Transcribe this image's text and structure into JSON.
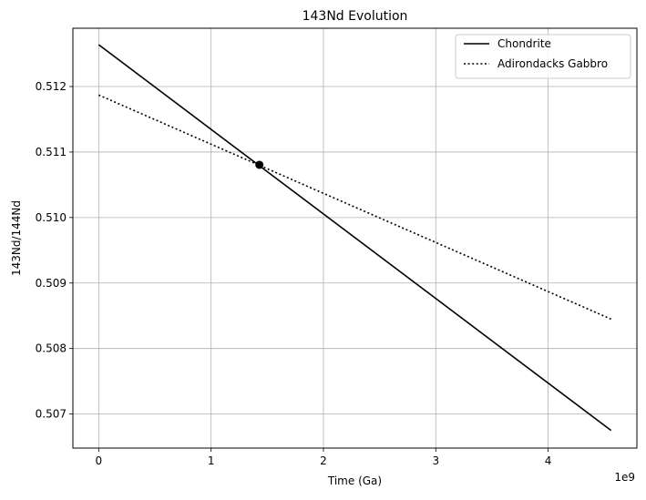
{
  "chart_data": {
    "type": "line",
    "title": "143Nd Evolution",
    "xlabel": "Time (Ga)",
    "ylabel": "143Nd/144Nd",
    "x_offset_label": "1e9",
    "xlim": [
      -0.23,
      4.79
    ],
    "ylim": [
      0.50648,
      0.51289
    ],
    "x_ticks": [
      0,
      1,
      2,
      3,
      4
    ],
    "x_tick_labels": [
      "0",
      "1",
      "2",
      "3",
      "4"
    ],
    "y_ticks": [
      0.507,
      0.508,
      0.509,
      0.51,
      0.511,
      0.512
    ],
    "y_tick_labels": [
      "0.507",
      "0.508",
      "0.509",
      "0.510",
      "0.511",
      "0.512"
    ],
    "grid": true,
    "legend_position": "top-right",
    "series": [
      {
        "name": "Chondrite",
        "style": "solid",
        "color": "#000000",
        "x": [
          0,
          4.56
        ],
        "y": [
          0.512638,
          0.506749
        ]
      },
      {
        "name": "Adirondacks Gabbro",
        "style": "dotted",
        "color": "#000000",
        "x": [
          0,
          4.56
        ],
        "y": [
          0.51187,
          0.508449
        ]
      }
    ],
    "marker_point": {
      "x": 1.43,
      "y": 0.510805
    }
  }
}
